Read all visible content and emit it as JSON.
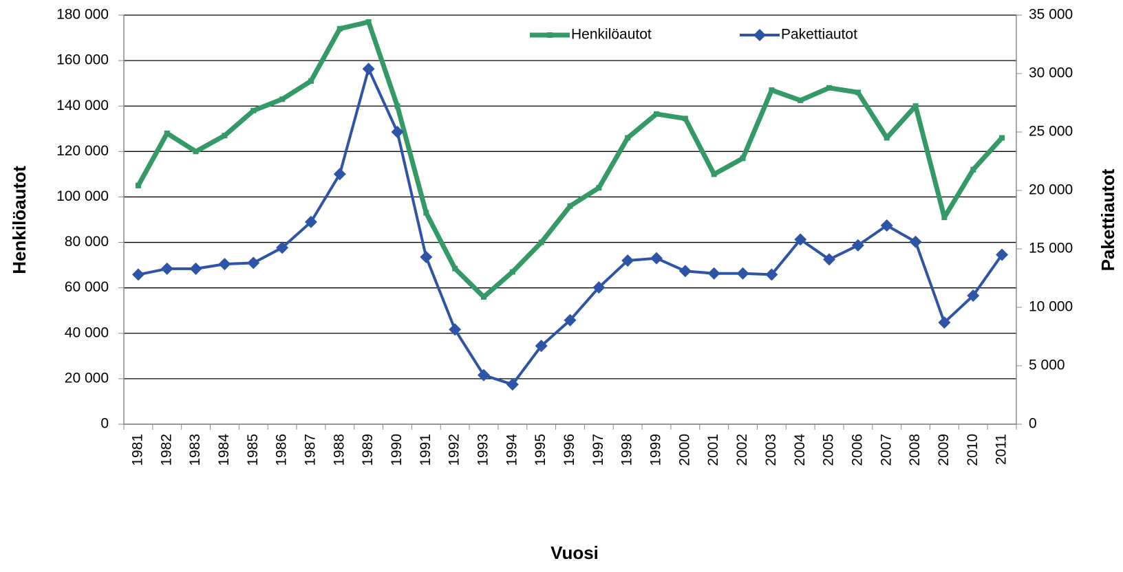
{
  "chart_data": {
    "type": "line",
    "categories": [
      "1981",
      "1982",
      "1983",
      "1984",
      "1985",
      "1986",
      "1987",
      "1988",
      "1989",
      "1990",
      "1991",
      "1992",
      "1993",
      "1994",
      "1995",
      "1996",
      "1997",
      "1998",
      "1999",
      "2000",
      "2001",
      "2002",
      "2003",
      "2004",
      "2005",
      "2006",
      "2007",
      "2008",
      "2009",
      "2010",
      "2011"
    ],
    "series": [
      {
        "name": "Henkilöautot",
        "color": "#339966",
        "marker": "square",
        "values": [
          105000,
          128000,
          120000,
          127000,
          138000,
          143000,
          151000,
          174000,
          177000,
          140000,
          93000,
          68500,
          56000,
          67000,
          80000,
          96000,
          104000,
          126000,
          136500,
          134500,
          110000,
          117000,
          147000,
          142500,
          148000,
          146000,
          126000,
          140000,
          91000,
          112000,
          126000
        ]
      },
      {
        "name": "Pakettiautot",
        "color": "#2e54a8",
        "marker": "diamond",
        "axis": "y2",
        "values": [
          12800,
          13300,
          13300,
          13700,
          13800,
          15100,
          17300,
          21400,
          30400,
          25000,
          14300,
          8100,
          4200,
          3400,
          6700,
          8900,
          11700,
          14000,
          14200,
          13100,
          12900,
          12900,
          12800,
          15800,
          14100,
          15300,
          17000,
          15600,
          8700,
          11000,
          14500
        ]
      }
    ],
    "xlabel": "Vuosi",
    "ylabel": "Henkilöautot",
    "y2label": "Pakettiautot",
    "ylim": [
      0,
      180000
    ],
    "yticks": [
      0,
      {
        "value": 20000,
        "label": "20 000"
      },
      {
        "value": 40000,
        "label": "40 000"
      },
      {
        "value": 60000,
        "label": "60 000"
      },
      {
        "value": 80000,
        "label": "80 000"
      },
      {
        "value": 100000,
        "label": "100 000"
      },
      {
        "value": 120000,
        "label": "120 000"
      },
      {
        "value": 140000,
        "label": "140 000"
      },
      {
        "value": 160000,
        "label": "160 000"
      },
      {
        "value": 180000,
        "label": "180 000"
      }
    ],
    "y2lim": [
      0,
      35000
    ],
    "y2ticks": [
      0,
      {
        "value": 5000,
        "label": "5 000"
      },
      {
        "value": 10000,
        "label": "10 000"
      },
      {
        "value": 15000,
        "label": "15 000"
      },
      {
        "value": 20000,
        "label": "20 000"
      },
      {
        "value": 25000,
        "label": "25 000"
      },
      {
        "value": 30000,
        "label": "30 000"
      },
      {
        "value": 35000,
        "label": "35 000"
      }
    ],
    "grid": true,
    "legend": "top"
  }
}
